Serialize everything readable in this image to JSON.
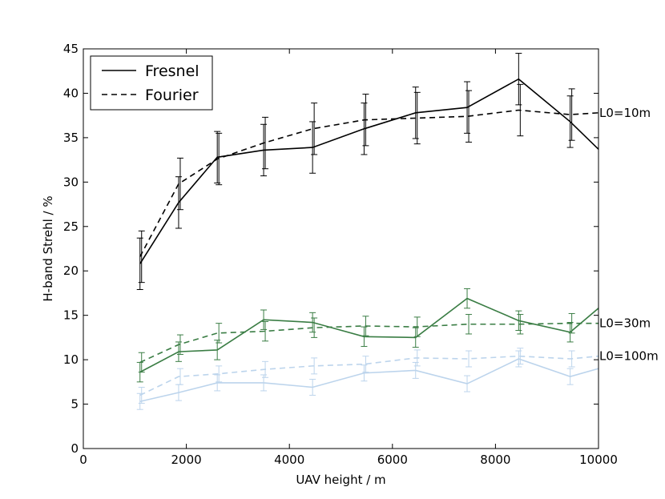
{
  "chart_data": {
    "type": "line",
    "xlabel": "UAV height / m",
    "ylabel": "H-band Strehl / %",
    "xlim": [
      0,
      10000
    ],
    "ylim": [
      0,
      45
    ],
    "xticks": [
      0,
      2000,
      4000,
      6000,
      8000,
      10000
    ],
    "yticks": [
      0,
      5,
      10,
      15,
      20,
      25,
      30,
      35,
      40,
      45
    ],
    "x": [
      1100,
      1850,
      2600,
      3500,
      4450,
      5450,
      6450,
      7450,
      8450,
      9450,
      10000
    ],
    "legend": {
      "placement": "top-left",
      "entries": [
        {
          "label": "Fresnel",
          "style": "solid"
        },
        {
          "label": "Fourier",
          "style": "dashed"
        }
      ]
    },
    "groups": [
      {
        "annotation": "L0=10m",
        "color": "#000000",
        "series": [
          {
            "name": "Fresnel",
            "style": "solid",
            "values": [
              20.8,
              27.7,
              32.8,
              33.6,
              33.9,
              36.0,
              37.8,
              38.4,
              41.6,
              36.8,
              33.7
            ],
            "errors": [
              2.9,
              2.9,
              2.9,
              2.9,
              2.9,
              2.9,
              2.9,
              2.9,
              2.9,
              2.9,
              2.9
            ]
          },
          {
            "name": "Fourier",
            "style": "dashed",
            "values": [
              21.6,
              29.8,
              32.6,
              34.4,
              36.0,
              37.0,
              37.2,
              37.4,
              38.1,
              37.6,
              37.8
            ],
            "errors": [
              2.9,
              2.9,
              2.9,
              2.9,
              2.9,
              2.9,
              2.9,
              2.9,
              2.9,
              2.9,
              2.9
            ]
          }
        ]
      },
      {
        "annotation": "L0=30m",
        "color": "#3a7d44",
        "series": [
          {
            "name": "Fresnel",
            "style": "solid",
            "values": [
              8.6,
              10.9,
              11.1,
              14.5,
              14.2,
              12.6,
              12.5,
              16.9,
              14.4,
              13.1,
              15.8
            ],
            "errors": [
              1.1,
              1.1,
              1.1,
              1.1,
              1.1,
              1.1,
              1.1,
              1.1,
              1.1,
              1.1,
              1.1
            ]
          },
          {
            "name": "Fourier",
            "style": "dashed",
            "values": [
              9.7,
              11.7,
              13.0,
              13.2,
              13.6,
              13.8,
              13.7,
              14.0,
              14.0,
              14.1,
              14.1
            ],
            "errors": [
              1.1,
              1.1,
              1.1,
              1.1,
              1.1,
              1.1,
              1.1,
              1.1,
              1.1,
              1.1,
              1.1
            ]
          }
        ]
      },
      {
        "annotation": "L0=100m",
        "color": "#bcd4ec",
        "series": [
          {
            "name": "Fresnel",
            "style": "solid",
            "values": [
              5.3,
              6.3,
              7.4,
              7.4,
              6.9,
              8.5,
              8.8,
              7.3,
              10.1,
              8.1,
              9.0
            ],
            "errors": [
              0.9,
              0.9,
              0.9,
              0.9,
              0.9,
              0.9,
              0.9,
              0.9,
              0.9,
              0.9,
              0.9
            ]
          },
          {
            "name": "Fourier",
            "style": "dashed",
            "values": [
              6.0,
              8.1,
              8.4,
              8.9,
              9.3,
              9.5,
              10.2,
              10.1,
              10.4,
              10.1,
              10.4
            ],
            "errors": [
              0.9,
              0.9,
              0.9,
              0.9,
              0.9,
              0.9,
              0.9,
              0.9,
              0.9,
              0.9,
              0.9
            ]
          }
        ]
      }
    ]
  }
}
